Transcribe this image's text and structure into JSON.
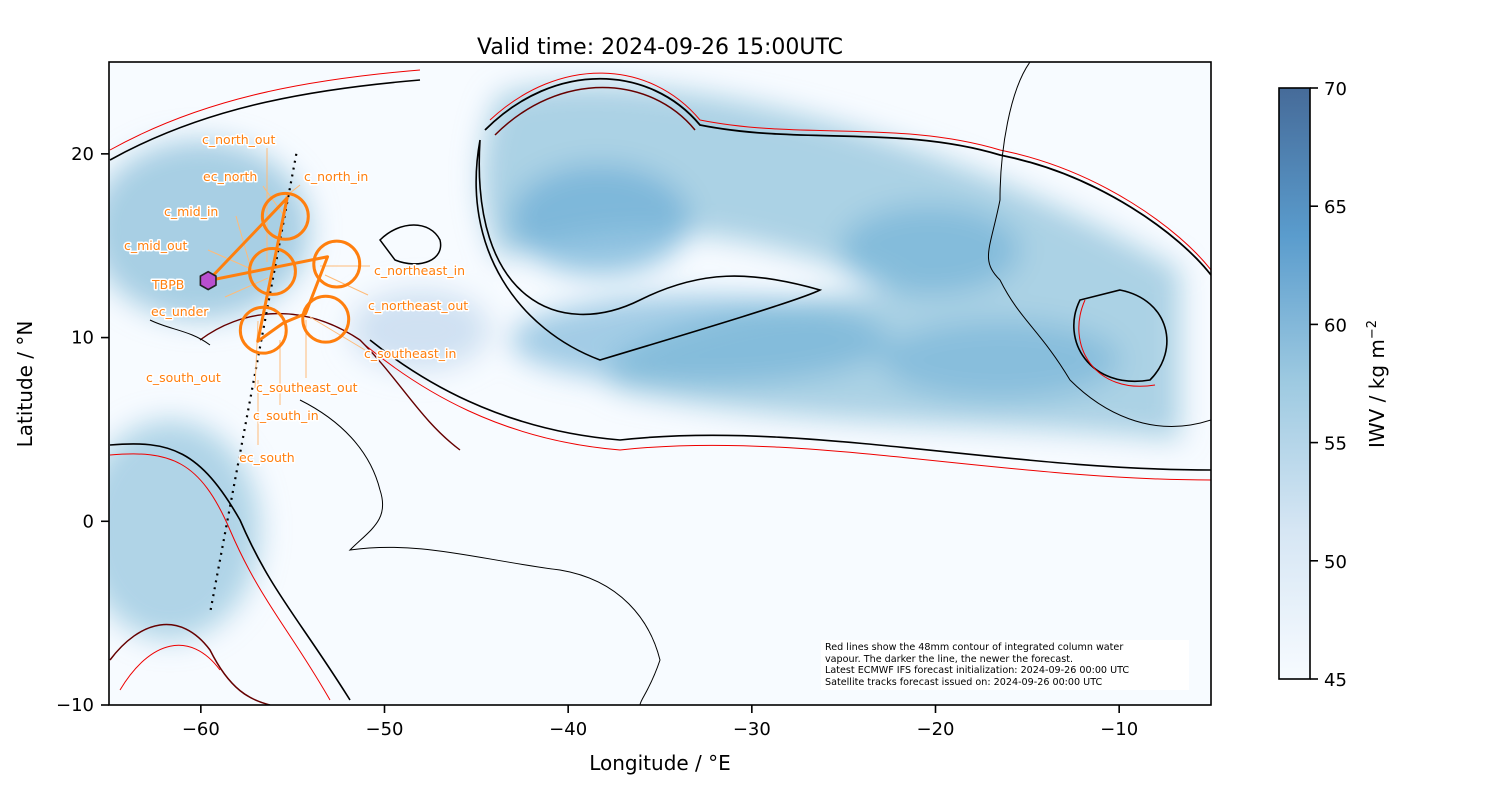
{
  "chart_data": {
    "type": "heatmap",
    "title": "Valid time: 2024-09-26 15:00UTC",
    "xlabel": "Longitude / °E",
    "ylabel": "Latitude / °N",
    "xlim": [
      -65,
      -5
    ],
    "ylim": [
      -10,
      25
    ],
    "xticks": [
      -60,
      -50,
      -40,
      -30,
      -20,
      -10
    ],
    "xtick_labels": [
      "−60",
      "−50",
      "−40",
      "−30",
      "−20",
      "−10"
    ],
    "yticks": [
      -10,
      0,
      10,
      20
    ],
    "ytick_labels": [
      "−10",
      "0",
      "10",
      "20"
    ],
    "colorbar": {
      "label": "IWV / kg m",
      "label_sup": "−2",
      "range": [
        45,
        70
      ],
      "ticks": [
        45,
        50,
        55,
        60,
        65,
        70
      ],
      "colormap": "Blues",
      "colors": [
        "#f7fbff",
        "#c6dbef",
        "#6baed6",
        "#2171b5",
        "#08306b"
      ]
    },
    "contour_level_mm": 48,
    "airport": {
      "name": "TBPB",
      "lon": -59.6,
      "lat": 13.1,
      "color": "#b94fcf"
    },
    "circles": [
      {
        "name": "c_north",
        "lon": -55.4,
        "lat": 16.6,
        "radius_deg": 1.25
      },
      {
        "name": "c_mid",
        "lon": -56.1,
        "lat": 13.6,
        "radius_deg": 1.25
      },
      {
        "name": "c_northeast",
        "lon": -52.6,
        "lat": 14.0,
        "radius_deg": 1.25
      },
      {
        "name": "c_south",
        "lon": -56.6,
        "lat": 10.4,
        "radius_deg": 1.25
      },
      {
        "name": "c_southeast",
        "lon": -53.2,
        "lat": 11.0,
        "radius_deg": 1.25
      }
    ],
    "flight_path": [
      [
        -59.6,
        13.1
      ],
      [
        -55.3,
        17.6
      ],
      [
        -56.9,
        9.8
      ],
      [
        -55.5,
        10.8
      ],
      [
        -54.3,
        11.3
      ],
      [
        -53.1,
        14.4
      ],
      [
        -59.6,
        13.1
      ]
    ],
    "satellite_track": [
      [
        -54.8,
        20
      ],
      [
        -59.5,
        -5
      ]
    ],
    "waypoint_labels": [
      "c_north_out",
      "ec_north",
      "c_north_in",
      "c_mid_in",
      "c_mid_out",
      "TBPB",
      "ec_under",
      "c_northeast_in",
      "c_northeast_out",
      "c_southeast_in",
      "c_south_out",
      "c_southeast_out",
      "c_south_in",
      "ec_south"
    ],
    "path_color": "#ff7f0e",
    "note": [
      "Red lines show the 48mm contour of integrated column water",
      "vapour. The darker the line, the newer the forecast.",
      "Latest ECMWF IFS forecast initialization: 2024-09-26 00:00 UTC",
      "Satellite tracks forecast issued on: 2024-09-26 00:00 UTC"
    ]
  }
}
